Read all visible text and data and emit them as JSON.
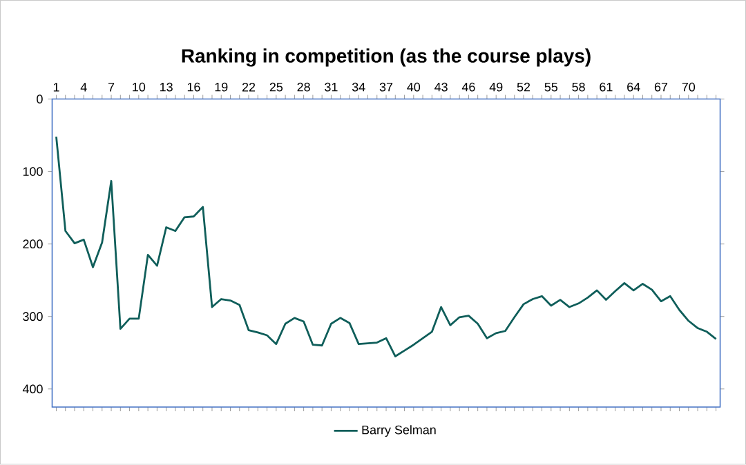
{
  "chart_data": {
    "type": "line",
    "title": "Ranking in competition (as the course plays)",
    "categories": [
      "1",
      null,
      null,
      "4",
      null,
      null,
      "7",
      null,
      null,
      "10",
      null,
      null,
      "13",
      null,
      null,
      "16",
      null,
      null,
      "19",
      null,
      null,
      "22",
      null,
      null,
      "25",
      null,
      null,
      "28",
      null,
      null,
      "31",
      null,
      null,
      "34",
      null,
      null,
      "37",
      null,
      null,
      "40",
      null,
      null,
      "43",
      null,
      null,
      "46",
      null,
      null,
      "49",
      null,
      null,
      "52",
      null,
      null,
      "55",
      null,
      null,
      "58",
      null,
      null,
      "61",
      null,
      null,
      "64",
      null,
      null,
      "67",
      null,
      null,
      "70",
      null,
      null,
      null
    ],
    "series": [
      {
        "name": "Barry Selman",
        "color": "#0f5e5a",
        "values": [
          52,
          182,
          199,
          194,
          232,
          198,
          113,
          317,
          303,
          303,
          215,
          230,
          177,
          182,
          163,
          162,
          149,
          287,
          276,
          278,
          284,
          319,
          322,
          326,
          338,
          310,
          302,
          307,
          339,
          340,
          310,
          302,
          309,
          338,
          337,
          336,
          330,
          355,
          347,
          339,
          330,
          321,
          287,
          312,
          301,
          299,
          310,
          330,
          323,
          320,
          301,
          283,
          276,
          272,
          285,
          277,
          287,
          282,
          274,
          264,
          277,
          265,
          254,
          264,
          255,
          263,
          279,
          272,
          291,
          306,
          316,
          321,
          331
        ]
      }
    ],
    "ylim": [
      425,
      0
    ],
    "yticks": [
      0,
      100,
      200,
      300,
      400
    ],
    "legend": "bottom"
  }
}
